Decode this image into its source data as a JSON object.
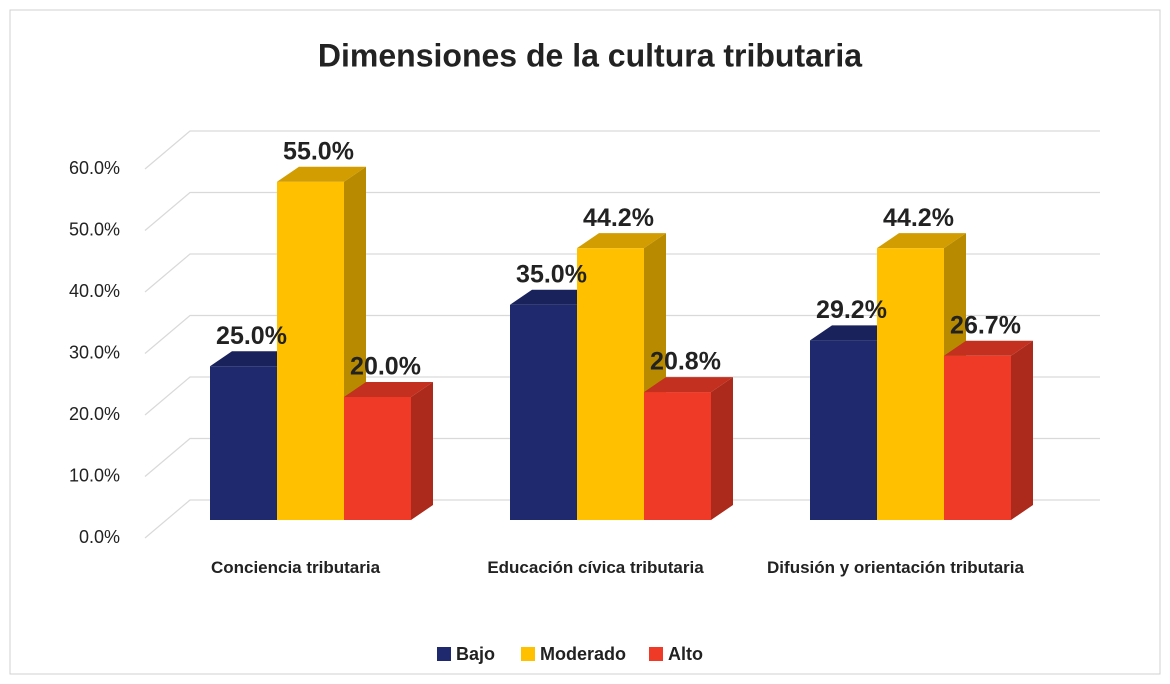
{
  "chart_data": {
    "type": "bar3d",
    "title": "Dimensiones de la cultura tributaria",
    "categories": [
      "Conciencia tributaria",
      "Educación cívica tributaria",
      "Difusión y orientación tributaria"
    ],
    "series": [
      {
        "name": "Bajo",
        "color": "#1f2a6e",
        "values": [
          25,
          35,
          29.2
        ],
        "value_labels": [
          "25.0%",
          "35.0%",
          "29.2%"
        ]
      },
      {
        "name": "Moderado",
        "color": "#ffc000",
        "values": [
          55,
          44.2,
          44.2
        ],
        "value_labels": [
          "55.0%",
          "44.2%",
          "44.2%"
        ]
      },
      {
        "name": "Alto",
        "color": "#ee3a26",
        "values": [
          20,
          20.8,
          26.7
        ],
        "value_labels": [
          "20.0%",
          "20.8%",
          "26.7%"
        ]
      }
    ],
    "ylim": [
      0,
      60
    ],
    "yticks": [
      {
        "value": 0,
        "label": "0.0%"
      },
      {
        "value": 10,
        "label": "10.0%"
      },
      {
        "value": 20,
        "label": "20.0%"
      },
      {
        "value": 30,
        "label": "30.0%"
      },
      {
        "value": 40,
        "label": "40.0%"
      },
      {
        "value": 50,
        "label": "50.0%"
      },
      {
        "value": 60,
        "label": "60.0%"
      }
    ],
    "grid": true,
    "legend": "bottom"
  }
}
